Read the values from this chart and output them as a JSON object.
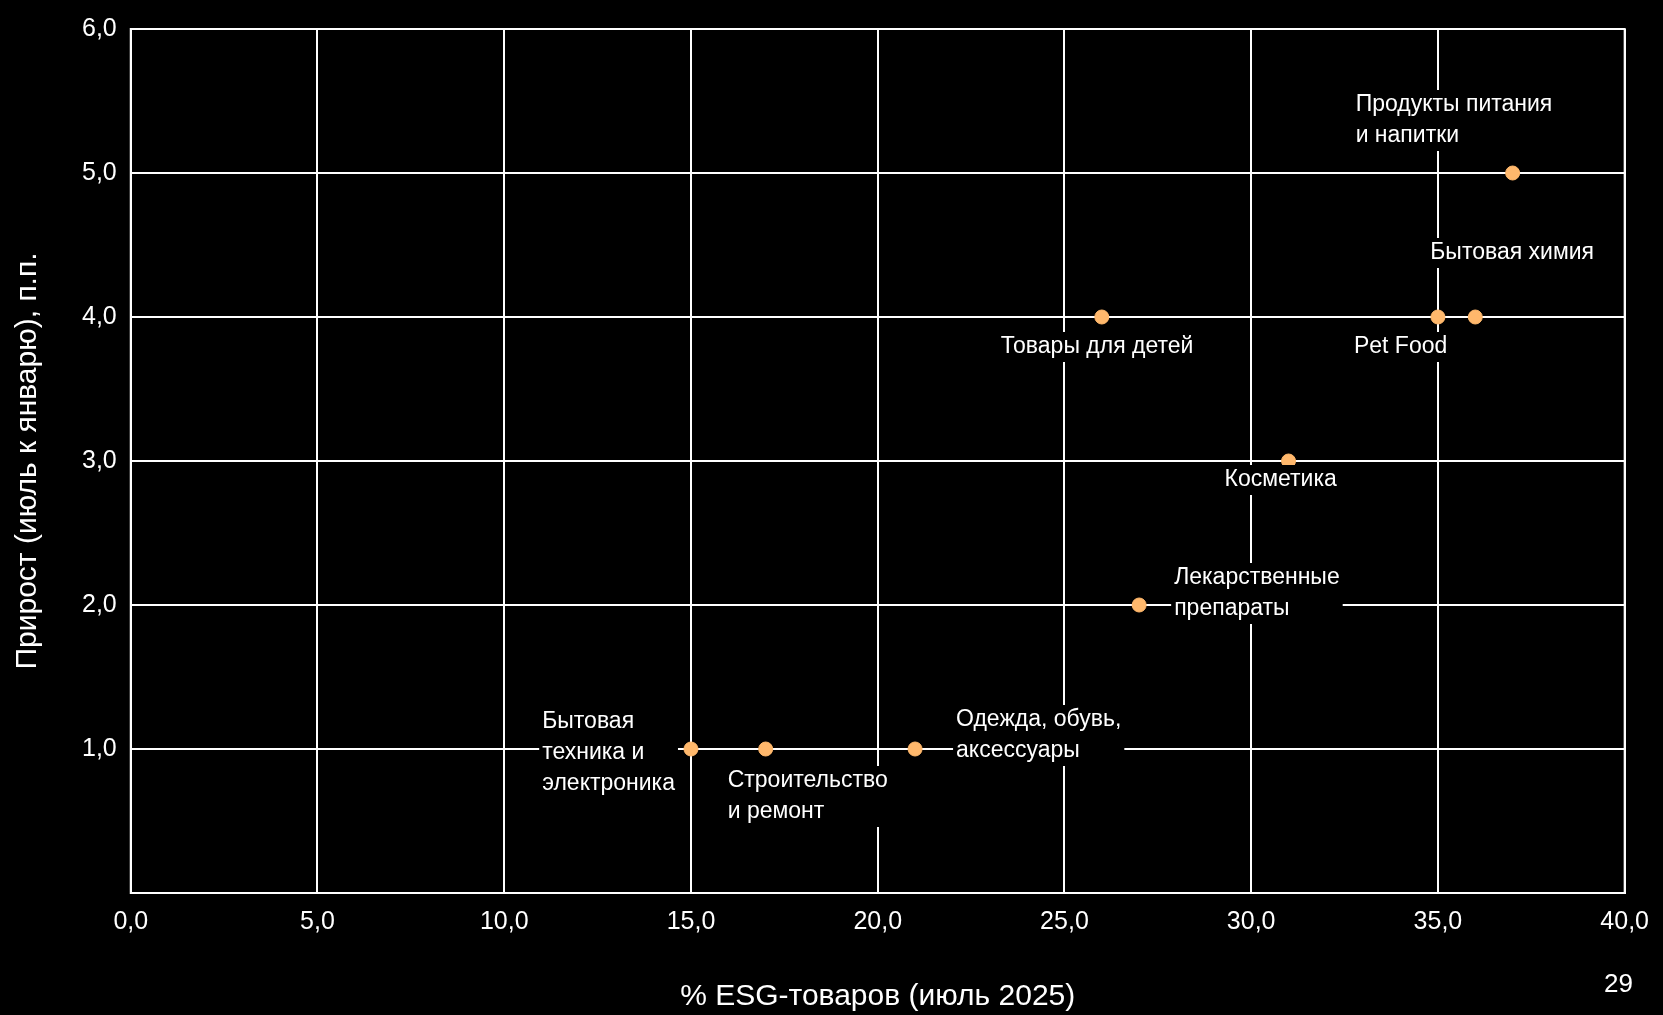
{
  "chart_data": {
    "type": "scatter",
    "xlabel": "% ESG-товаров (июль 2025)",
    "ylabel": "Прирост (июль к январю), п.п.",
    "series": [
      {
        "color": "#ffb86c",
        "x": [
          15,
          17,
          21,
          26,
          27,
          31,
          35,
          36,
          37
        ],
        "values": [
          1,
          1,
          1,
          4,
          2,
          3,
          4,
          4,
          5
        ]
      }
    ],
    "xlim": [
      0,
      40
    ],
    "ylim": [
      0,
      6
    ],
    "xticks": [
      {
        "value": 0,
        "label": "0,0"
      },
      {
        "value": 5,
        "label": "5,0"
      },
      {
        "value": 10,
        "label": "10,0"
      },
      {
        "value": 15,
        "label": "15,0"
      },
      {
        "value": 20,
        "label": "20,0"
      },
      {
        "value": 25,
        "label": "25,0"
      },
      {
        "value": 30,
        "label": "30,0"
      },
      {
        "value": 35,
        "label": "35,0"
      },
      {
        "value": 40,
        "label": "40,0"
      }
    ],
    "yticks": [
      {
        "value": 1,
        "label": "1,0"
      },
      {
        "value": 2,
        "label": "2,0"
      },
      {
        "value": 3,
        "label": "3,0"
      },
      {
        "value": 4,
        "label": "4,0"
      },
      {
        "value": 5,
        "label": "5,0"
      },
      {
        "value": 6,
        "label": "6,0"
      }
    ],
    "grid": true,
    "legend": false,
    "marker": "circle",
    "annotations": [
      {
        "text": "Бытовая\nтехника и\nэлектроника",
        "x": 15,
        "y": 1
      },
      {
        "text": "Строительство\nи ремонт",
        "x": 17,
        "y": 1
      },
      {
        "text": "Одежда, обувь,\nаксессуары",
        "x": 21,
        "y": 1
      },
      {
        "text": "Товары для детей",
        "x": 26,
        "y": 4
      },
      {
        "text": "Лекарственные\nпрепараты",
        "x": 27,
        "y": 2
      },
      {
        "text": "Косметика",
        "x": 31,
        "y": 3
      },
      {
        "text": "Pet Food",
        "x": 35,
        "y": 4
      },
      {
        "text": "Бытовая химия",
        "x": 36,
        "y": 4
      },
      {
        "text": "Продукты питания\nи напитки",
        "x": 37,
        "y": 5
      },
      "29"
    ]
  }
}
